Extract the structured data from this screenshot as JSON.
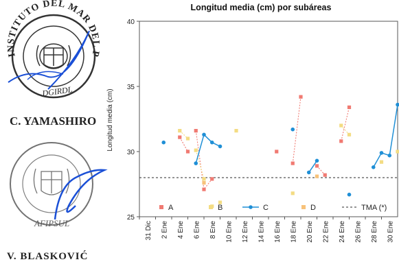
{
  "stamps": {
    "top_seal_text": "INSTITUTO DEL MAR DEL PERU",
    "top_seal_sub": "DGIRDL",
    "top_name": "C. YAMASHIRO",
    "bottom_seal_sub": "AFIPSUL",
    "bottom_name": "V. BLASKOVIĆ"
  },
  "colors": {
    "A": "#f07a72",
    "B": "#f3dc83",
    "C": "#1f8fd6",
    "D": "#f7c27a",
    "TMA": "#555555",
    "ink": "#1a4fd6",
    "seal": "#333333"
  },
  "chart_data": {
    "type": "line",
    "title": "Longitud media (cm) por subáreas",
    "ylabel": "Longitud media (cm)",
    "xlabel": "",
    "ylim": [
      25,
      40
    ],
    "yticks": [
      25,
      30,
      35,
      40
    ],
    "xtick_labels": [
      "31 Dic",
      "2 Ene",
      "4 Ene",
      "6 Ene",
      "8 Ene",
      "10 Ene",
      "12 Ene",
      "14 Ene",
      "16 Ene",
      "18 Ene",
      "20 Ene",
      "22 Ene",
      "24 Ene",
      "26 Ene",
      "28 Ene",
      "30 Ene"
    ],
    "reference_line": {
      "name": "TMA (*)",
      "y": 28
    },
    "legend_position": "bottom",
    "series": [
      {
        "name": "A",
        "style": "dashed-square",
        "segments": [
          [
            [
              "4 Ene",
              31.1
            ],
            [
              "5 Ene",
              30.0
            ]
          ],
          [
            [
              "6 Ene",
              31.6
            ],
            [
              "7 Ene",
              27.1
            ],
            [
              "8 Ene",
              27.9
            ]
          ],
          [
            [
              "16 Ene",
              30.0
            ]
          ],
          [
            [
              "18 Ene",
              29.1
            ],
            [
              "19 Ene",
              34.2
            ]
          ],
          [
            [
              "21 Ene",
              28.9
            ],
            [
              "22 Ene",
              28.2
            ]
          ],
          [
            [
              "24 Ene",
              30.8
            ],
            [
              "25 Ene",
              33.4
            ]
          ]
        ]
      },
      {
        "name": "B",
        "style": "dashed-square",
        "segments": [
          [
            [
              "4 Ene",
              31.6
            ],
            [
              "5 Ene",
              31.0
            ]
          ],
          [
            [
              "6 Ene",
              30.1
            ],
            [
              "7 Ene",
              27.9
            ]
          ],
          [
            [
              "8 Ene",
              25.8
            ]
          ],
          [
            [
              "9 Ene",
              26.1
            ]
          ],
          [
            [
              "11 Ene",
              31.6
            ]
          ],
          [
            [
              "18 Ene",
              26.8
            ]
          ],
          [
            [
              "24 Ene",
              32.0
            ],
            [
              "25 Ene",
              31.3
            ]
          ],
          [
            [
              "29 Ene",
              29.2
            ]
          ],
          [
            [
              "31 Ene",
              30.0
            ]
          ]
        ]
      },
      {
        "name": "C",
        "style": "solid-diamond",
        "segments": [
          [
            [
              "2 Ene",
              30.7
            ]
          ],
          [
            [
              "6 Ene",
              29.1
            ],
            [
              "7 Ene",
              31.3
            ],
            [
              "8 Ene",
              30.7
            ],
            [
              "9 Ene",
              30.4
            ]
          ],
          [
            [
              "18 Ene",
              31.7
            ]
          ],
          [
            [
              "20 Ene",
              28.4
            ],
            [
              "21 Ene",
              29.3
            ]
          ],
          [
            [
              "25 Ene",
              26.7
            ]
          ],
          [
            [
              "28 Ene",
              28.8
            ],
            [
              "29 Ene",
              29.9
            ],
            [
              "30 Ene",
              29.7
            ],
            [
              "31 Ene",
              33.6
            ]
          ]
        ]
      },
      {
        "name": "D",
        "style": "dashed-square",
        "segments": [
          [
            [
              "7 Ene",
              27.6
            ]
          ],
          [
            [
              "21 Ene",
              28.1
            ]
          ]
        ]
      }
    ]
  }
}
